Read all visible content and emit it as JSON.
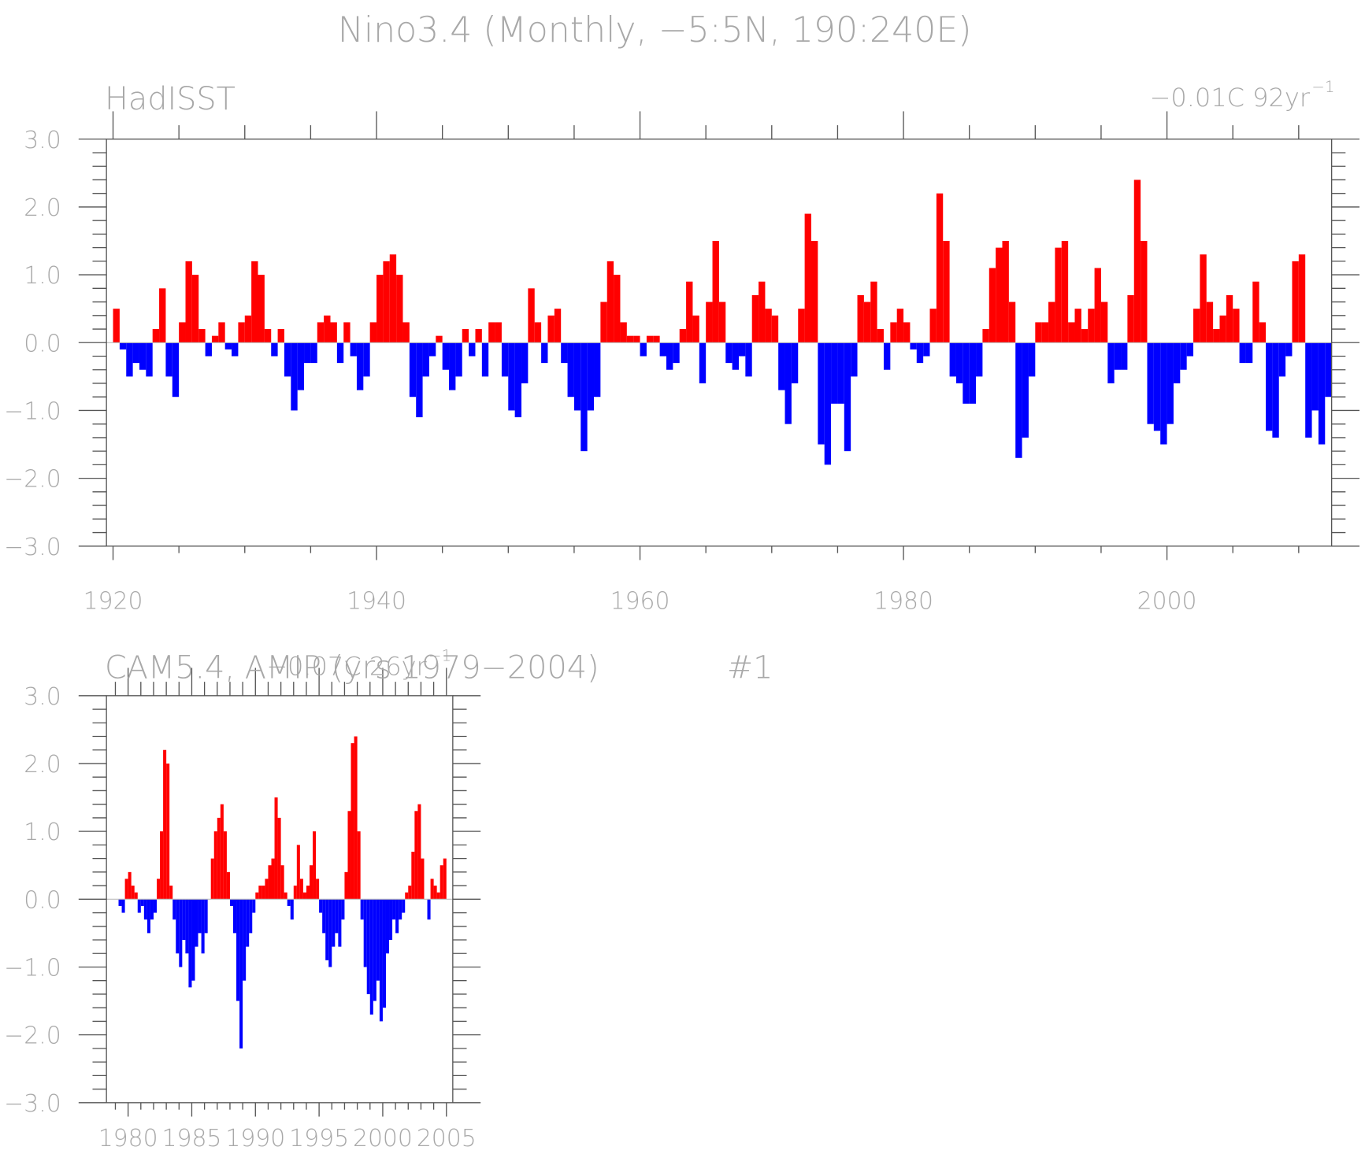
{
  "title": "Nino3.4 (Monthly, −5:5N, 190:240E)",
  "chart_data": [
    {
      "type": "bar",
      "subtitle": "HadISST",
      "trend": "−0.01C 92yr",
      "trend_exponent": "−1",
      "positive_color": "#ff0000",
      "negative_color": "#0000ff",
      "xlim": [
        1919.5,
        2012.5
      ],
      "ylim": [
        -3,
        3
      ],
      "xticks": [
        1920,
        1940,
        1960,
        1980,
        2000
      ],
      "yticks": [
        {
          "value": -3,
          "label": "−3.0"
        },
        {
          "value": -2,
          "label": "−2.0"
        },
        {
          "value": -1,
          "label": "−1.0"
        },
        {
          "value": 0,
          "label": "0.0"
        },
        {
          "value": 1,
          "label": "1.0"
        },
        {
          "value": 2,
          "label": "2.0"
        },
        {
          "value": 3,
          "label": "3.0"
        }
      ],
      "x": [
        1920,
        1920.5,
        1921,
        1921.5,
        1922,
        1922.5,
        1923,
        1923.5,
        1924,
        1924.5,
        1925,
        1925.5,
        1926,
        1926.5,
        1927,
        1927.5,
        1928,
        1928.5,
        1929,
        1929.5,
        1930,
        1930.5,
        1931,
        1931.5,
        1932,
        1932.5,
        1933,
        1933.5,
        1934,
        1934.5,
        1935,
        1935.5,
        1936,
        1936.5,
        1937,
        1937.5,
        1938,
        1938.5,
        1939,
        1939.5,
        1940,
        1940.5,
        1941,
        1941.5,
        1942,
        1942.5,
        1943,
        1943.5,
        1944,
        1944.5,
        1945,
        1945.5,
        1946,
        1946.5,
        1947,
        1947.5,
        1948,
        1948.5,
        1949,
        1949.5,
        1950,
        1950.5,
        1951,
        1951.5,
        1952,
        1952.5,
        1953,
        1953.5,
        1954,
        1954.5,
        1955,
        1955.5,
        1956,
        1956.5,
        1957,
        1957.5,
        1958,
        1958.5,
        1959,
        1959.5,
        1960,
        1960.5,
        1961,
        1961.5,
        1962,
        1962.5,
        1963,
        1963.5,
        1964,
        1964.5,
        1965,
        1965.5,
        1966,
        1966.5,
        1967,
        1967.5,
        1968,
        1968.5,
        1969,
        1969.5,
        1970,
        1970.5,
        1971,
        1971.5,
        1972,
        1972.5,
        1973,
        1973.5,
        1974,
        1974.5,
        1975,
        1975.5,
        1976,
        1976.5,
        1977,
        1977.5,
        1978,
        1978.5,
        1979,
        1979.5,
        1980,
        1980.5,
        1981,
        1981.5,
        1982,
        1982.5,
        1983,
        1983.5,
        1984,
        1984.5,
        1985,
        1985.5,
        1986,
        1986.5,
        1987,
        1987.5,
        1988,
        1988.5,
        1989,
        1989.5,
        1990,
        1990.5,
        1991,
        1991.5,
        1992,
        1992.5,
        1993,
        1993.5,
        1994,
        1994.5,
        1995,
        1995.5,
        1996,
        1996.5,
        1997,
        1997.5,
        1998,
        1998.5,
        1999,
        1999.5,
        2000,
        2000.5,
        2001,
        2001.5,
        2002,
        2002.5,
        2003,
        2003.5,
        2004,
        2004.5,
        2005,
        2005.5,
        2006,
        2006.5,
        2007,
        2007.5,
        2008,
        2008.5,
        2009,
        2009.5,
        2010,
        2010.5,
        2011,
        2011.5,
        2012
      ],
      "values": [
        0.5,
        -0.1,
        -0.5,
        -0.3,
        -0.4,
        -0.5,
        0.2,
        0.8,
        -0.5,
        -0.8,
        0.3,
        1.2,
        1.0,
        0.2,
        -0.2,
        0.1,
        0.3,
        -0.1,
        -0.2,
        0.3,
        0.4,
        1.2,
        1.0,
        0.2,
        -0.2,
        0.2,
        -0.5,
        -1.0,
        -0.7,
        -0.3,
        -0.3,
        0.3,
        0.4,
        0.3,
        -0.3,
        0.3,
        -0.2,
        -0.7,
        -0.5,
        0.3,
        1.0,
        1.2,
        1.3,
        1.0,
        0.3,
        -0.8,
        -1.1,
        -0.5,
        -0.2,
        0.1,
        -0.4,
        -0.7,
        -0.5,
        0.2,
        -0.2,
        0.2,
        -0.5,
        0.3,
        0.3,
        -0.5,
        -1.0,
        -1.1,
        -0.6,
        0.8,
        0.3,
        -0.3,
        0.4,
        0.5,
        -0.3,
        -0.8,
        -1.0,
        -1.6,
        -1.0,
        -0.8,
        0.6,
        1.2,
        1.0,
        0.3,
        0.1,
        0.1,
        -0.2,
        0.1,
        0.1,
        -0.2,
        -0.4,
        -0.3,
        0.2,
        0.9,
        0.4,
        -0.6,
        0.6,
        1.5,
        0.6,
        -0.3,
        -0.4,
        -0.2,
        -0.5,
        0.7,
        0.9,
        0.5,
        0.4,
        -0.7,
        -1.2,
        -0.6,
        0.5,
        1.9,
        1.5,
        -1.5,
        -1.8,
        -0.9,
        -0.9,
        -1.6,
        -0.5,
        0.7,
        0.6,
        0.9,
        0.2,
        -0.4,
        0.3,
        0.5,
        0.3,
        -0.1,
        -0.3,
        -0.2,
        0.5,
        2.2,
        1.5,
        -0.5,
        -0.6,
        -0.9,
        -0.9,
        -0.5,
        0.2,
        1.1,
        1.4,
        1.5,
        0.6,
        -1.7,
        -1.4,
        -0.5,
        0.3,
        0.3,
        0.6,
        1.4,
        1.5,
        0.3,
        0.5,
        0.2,
        0.5,
        1.1,
        0.6,
        -0.6,
        -0.4,
        -0.4,
        0.7,
        2.4,
        1.5,
        -1.2,
        -1.3,
        -1.5,
        -1.2,
        -0.6,
        -0.4,
        -0.2,
        0.5,
        1.3,
        0.6,
        0.2,
        0.4,
        0.7,
        0.5,
        -0.3,
        -0.3,
        0.9,
        0.3,
        -1.3,
        -1.4,
        -0.5,
        -0.2,
        1.2,
        1.3,
        -1.4,
        -1.0,
        -1.5,
        -0.8
      ]
    },
    {
      "type": "bar",
      "subtitle": "CAM5.4, AMIP (yrs 1979−2004)",
      "label": "#1",
      "trend": "−0.07C 26yr",
      "trend_exponent": "−1",
      "positive_color": "#ff0000",
      "negative_color": "#0000ff",
      "xlim": [
        1978.3,
        2005.5
      ],
      "ylim": [
        -3,
        3
      ],
      "xticks": [
        1980,
        1985,
        1990,
        1995,
        2000,
        2005
      ],
      "yticks": [
        {
          "value": -3,
          "label": "−3.0"
        },
        {
          "value": -2,
          "label": "−2.0"
        },
        {
          "value": -1,
          "label": "−1.0"
        },
        {
          "value": 0,
          "label": "0.0"
        },
        {
          "value": 1,
          "label": "1.0"
        },
        {
          "value": 2,
          "label": "2.0"
        },
        {
          "value": 3,
          "label": "3.0"
        }
      ],
      "x": [
        1979,
        1979.25,
        1979.5,
        1979.75,
        1980,
        1980.25,
        1980.5,
        1980.75,
        1981,
        1981.25,
        1981.5,
        1981.75,
        1982,
        1982.25,
        1982.5,
        1982.75,
        1983,
        1983.25,
        1983.5,
        1983.75,
        1984,
        1984.25,
        1984.5,
        1984.75,
        1985,
        1985.25,
        1985.5,
        1985.75,
        1986,
        1986.25,
        1986.5,
        1986.75,
        1987,
        1987.25,
        1987.5,
        1987.75,
        1988,
        1988.25,
        1988.5,
        1988.75,
        1989,
        1989.25,
        1989.5,
        1989.75,
        1990,
        1990.25,
        1990.5,
        1990.75,
        1991,
        1991.25,
        1991.5,
        1991.75,
        1992,
        1992.25,
        1992.5,
        1992.75,
        1993,
        1993.25,
        1993.5,
        1993.75,
        1994,
        1994.25,
        1994.5,
        1994.75,
        1995,
        1995.25,
        1995.5,
        1995.75,
        1996,
        1996.25,
        1996.5,
        1996.75,
        1997,
        1997.25,
        1997.5,
        1997.75,
        1998,
        1998.25,
        1998.5,
        1998.75,
        1999,
        1999.25,
        1999.5,
        1999.75,
        2000,
        2000.25,
        2000.5,
        2000.75,
        2001,
        2001.25,
        2001.5,
        2001.75,
        2002,
        2002.25,
        2002.5,
        2002.75,
        2003,
        2003.25,
        2003.5,
        2003.75,
        2004,
        2004.25,
        2004.5,
        2004.75
      ],
      "values": [
        0.0,
        -0.1,
        -0.2,
        0.3,
        0.4,
        0.2,
        0.1,
        -0.2,
        -0.1,
        -0.3,
        -0.5,
        -0.3,
        -0.2,
        0.3,
        1.0,
        2.2,
        2.0,
        0.2,
        -0.3,
        -0.8,
        -1.0,
        -0.6,
        -0.8,
        -1.3,
        -1.2,
        -0.7,
        -0.5,
        -0.8,
        -0.5,
        0.0,
        0.6,
        1.0,
        1.2,
        1.4,
        1.0,
        0.4,
        -0.1,
        -0.5,
        -1.5,
        -2.2,
        -1.2,
        -0.7,
        -0.5,
        -0.2,
        0.1,
        0.2,
        0.2,
        0.3,
        0.5,
        0.6,
        1.5,
        1.2,
        0.5,
        0.1,
        -0.1,
        -0.3,
        0.2,
        0.8,
        0.3,
        0.1,
        0.2,
        0.5,
        1.0,
        0.3,
        -0.2,
        -0.5,
        -0.9,
        -1.0,
        -0.7,
        -0.5,
        -0.7,
        -0.3,
        0.4,
        1.3,
        2.3,
        2.4,
        1.0,
        -0.3,
        -1.0,
        -1.4,
        -1.7,
        -1.5,
        -1.2,
        -1.8,
        -1.6,
        -0.8,
        -0.6,
        -0.3,
        -0.5,
        -0.3,
        -0.2,
        0.1,
        0.2,
        0.7,
        1.3,
        1.4,
        0.6,
        0.0,
        -0.3,
        0.3,
        0.2,
        0.1,
        0.5,
        0.6
      ]
    }
  ]
}
